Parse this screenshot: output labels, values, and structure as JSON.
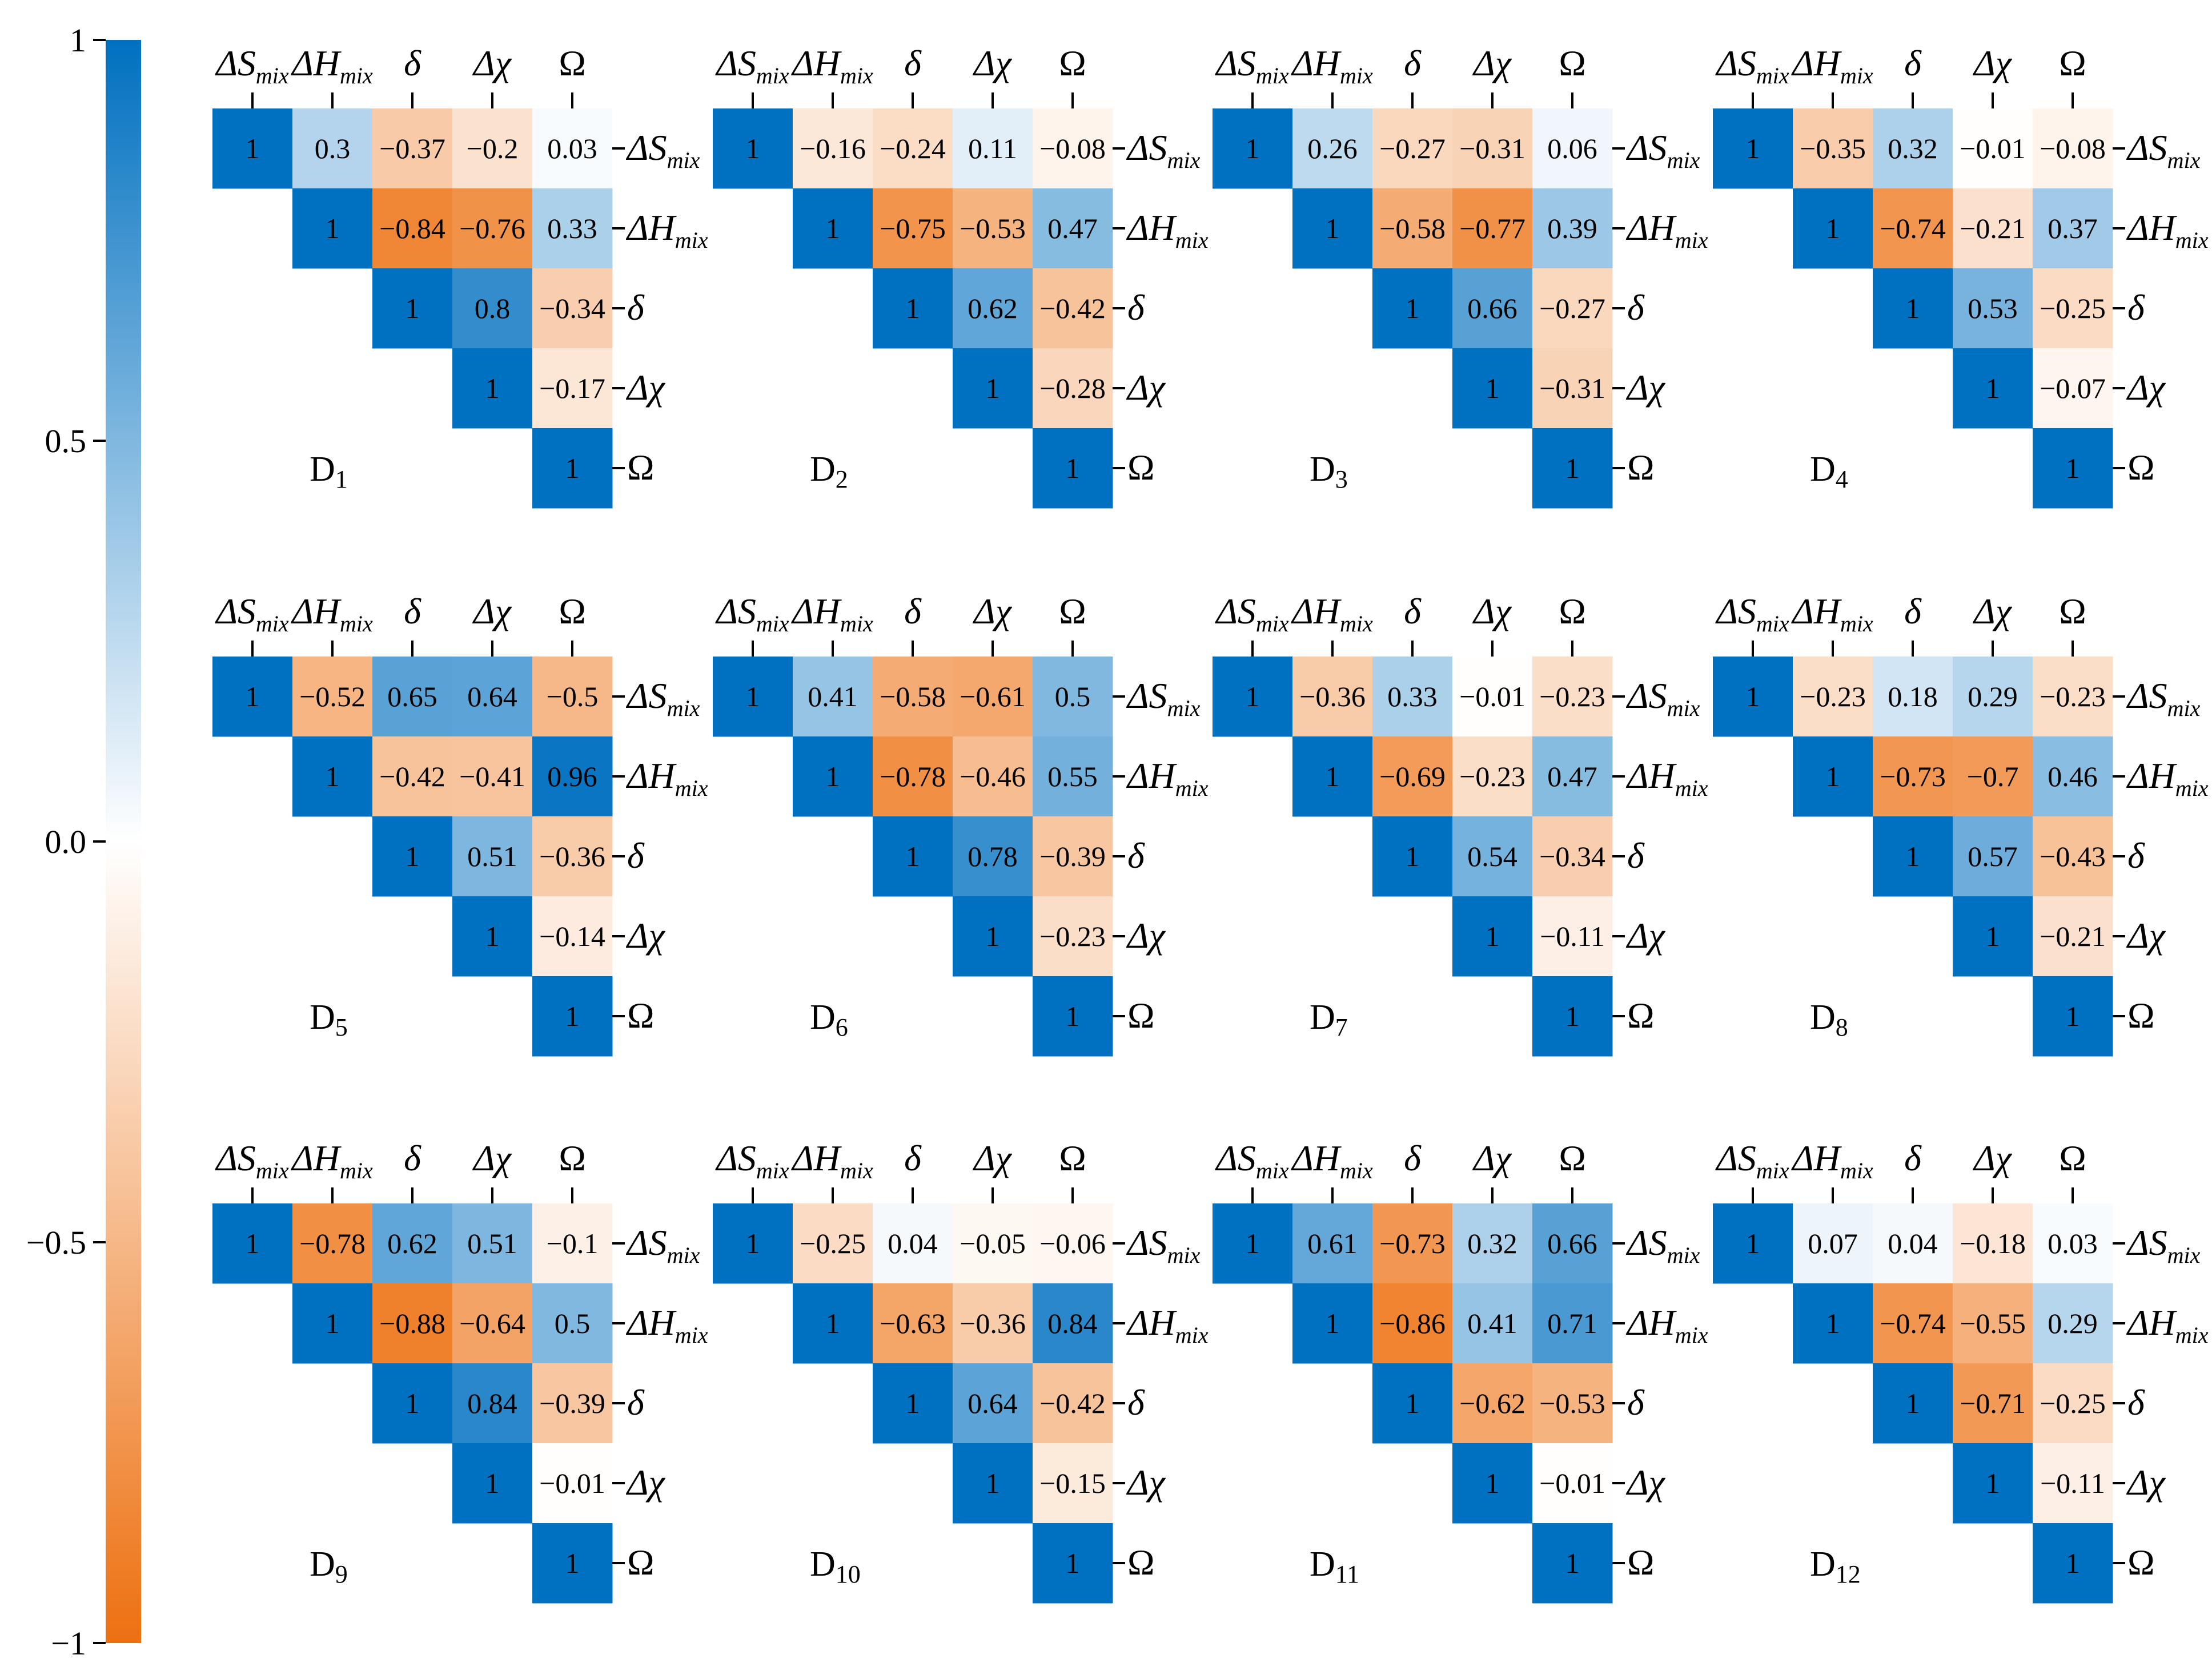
{
  "chart_data": {
    "type": "heatmap",
    "layout": "grid of 12 upper-triangular correlation matrices (3 rows x 4 columns)",
    "variables": [
      {
        "main": "ΔS",
        "sub": "mix",
        "italic": true
      },
      {
        "main": "ΔH",
        "sub": "mix",
        "italic": true
      },
      {
        "main": "δ",
        "sub": "",
        "italic": true
      },
      {
        "main": "Δχ",
        "sub": "",
        "italic": true
      },
      {
        "main": "Ω",
        "sub": "",
        "italic": false
      }
    ],
    "colorbar": {
      "min": -1,
      "max": 1,
      "ticks": [
        {
          "value": 1,
          "label": "1"
        },
        {
          "value": 0.5,
          "label": "0.5"
        },
        {
          "value": 0,
          "label": "0.0"
        },
        {
          "value": -0.5,
          "label": "−0.5"
        },
        {
          "value": -1,
          "label": "−1"
        }
      ],
      "colors": {
        "positive": "#0070c0",
        "mid": "#ffffff",
        "negative": "#ed7010"
      }
    },
    "panels": [
      {
        "label": "D",
        "sub": "1",
        "values": [
          [
            "1",
            "0.3",
            "−0.37",
            "−0.2",
            "0.03"
          ],
          [
            "1",
            "−0.84",
            "−0.76",
            "0.33"
          ],
          [
            "1",
            "0.8",
            "−0.34"
          ],
          [
            "1",
            "−0.17"
          ],
          [
            "1"
          ]
        ]
      },
      {
        "label": "D",
        "sub": "2",
        "values": [
          [
            "1",
            "−0.16",
            "−0.24",
            "0.11",
            "−0.08"
          ],
          [
            "1",
            "−0.75",
            "−0.53",
            "0.47"
          ],
          [
            "1",
            "0.62",
            "−0.42"
          ],
          [
            "1",
            "−0.28"
          ],
          [
            "1"
          ]
        ]
      },
      {
        "label": "D",
        "sub": "3",
        "values": [
          [
            "1",
            "0.26",
            "−0.27",
            "−0.31",
            "0.06"
          ],
          [
            "1",
            "−0.58",
            "−0.77",
            "0.39"
          ],
          [
            "1",
            "0.66",
            "−0.27"
          ],
          [
            "1",
            "−0.31"
          ],
          [
            "1"
          ]
        ]
      },
      {
        "label": "D",
        "sub": "4",
        "values": [
          [
            "1",
            "−0.35",
            "0.32",
            "−0.01",
            "−0.08"
          ],
          [
            "1",
            "−0.74",
            "−0.21",
            "0.37"
          ],
          [
            "1",
            "0.53",
            "−0.25"
          ],
          [
            "1",
            "−0.07"
          ],
          [
            "1"
          ]
        ]
      },
      {
        "label": "D",
        "sub": "5",
        "values": [
          [
            "1",
            "−0.52",
            "0.65",
            "0.64",
            "−0.5"
          ],
          [
            "1",
            "−0.42",
            "−0.41",
            "0.96"
          ],
          [
            "1",
            "0.51",
            "−0.36"
          ],
          [
            "1",
            "−0.14"
          ],
          [
            "1"
          ]
        ]
      },
      {
        "label": "D",
        "sub": "6",
        "values": [
          [
            "1",
            "0.41",
            "−0.58",
            "−0.61",
            "0.5"
          ],
          [
            "1",
            "−0.78",
            "−0.46",
            "0.55"
          ],
          [
            "1",
            "0.78",
            "−0.39"
          ],
          [
            "1",
            "−0.23"
          ],
          [
            "1"
          ]
        ]
      },
      {
        "label": "D",
        "sub": "7",
        "values": [
          [
            "1",
            "−0.36",
            "0.33",
            "−0.01",
            "−0.23"
          ],
          [
            "1",
            "−0.69",
            "−0.23",
            "0.47"
          ],
          [
            "1",
            "0.54",
            "−0.34"
          ],
          [
            "1",
            "−0.11"
          ],
          [
            "1"
          ]
        ]
      },
      {
        "label": "D",
        "sub": "8",
        "values": [
          [
            "1",
            "−0.23",
            "0.18",
            "0.29",
            "−0.23"
          ],
          [
            "1",
            "−0.73",
            "−0.7",
            "0.46"
          ],
          [
            "1",
            "0.57",
            "−0.43"
          ],
          [
            "1",
            "−0.21"
          ],
          [
            "1"
          ]
        ]
      },
      {
        "label": "D",
        "sub": "9",
        "values": [
          [
            "1",
            "−0.78",
            "0.62",
            "0.51",
            "−0.1"
          ],
          [
            "1",
            "−0.88",
            "−0.64",
            "0.5"
          ],
          [
            "1",
            "0.84",
            "−0.39"
          ],
          [
            "1",
            "−0.01"
          ],
          [
            "1"
          ]
        ]
      },
      {
        "label": "D",
        "sub": "10",
        "values": [
          [
            "1",
            "−0.25",
            "0.04",
            "−0.05",
            "−0.06"
          ],
          [
            "1",
            "−0.63",
            "−0.36",
            "0.84"
          ],
          [
            "1",
            "0.64",
            "−0.42"
          ],
          [
            "1",
            "−0.15"
          ],
          [
            "1"
          ]
        ]
      },
      {
        "label": "D",
        "sub": "11",
        "values": [
          [
            "1",
            "0.61",
            "−0.73",
            "0.32",
            "0.66"
          ],
          [
            "1",
            "−0.86",
            "0.41",
            "0.71"
          ],
          [
            "1",
            "−0.62",
            "−0.53"
          ],
          [
            "1",
            "−0.01"
          ],
          [
            "1"
          ]
        ]
      },
      {
        "label": "D",
        "sub": "12",
        "values": [
          [
            "1",
            "0.07",
            "0.04",
            "−0.18",
            "0.03"
          ],
          [
            "1",
            "−0.74",
            "−0.55",
            "0.29"
          ],
          [
            "1",
            "−0.71",
            "−0.25"
          ],
          [
            "1",
            "−0.11"
          ],
          [
            "1"
          ]
        ]
      }
    ]
  }
}
